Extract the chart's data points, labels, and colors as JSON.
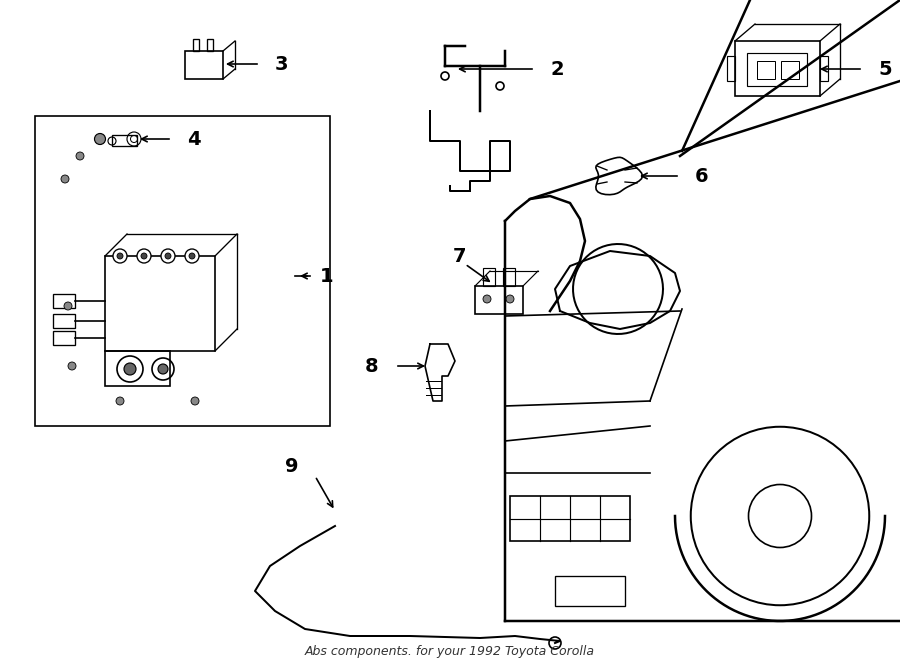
{
  "title": "Abs components. for your 1992 Toyota Corolla",
  "background_color": "#ffffff",
  "line_color": "#000000",
  "line_width": 1.2,
  "label_fontsize": 14
}
